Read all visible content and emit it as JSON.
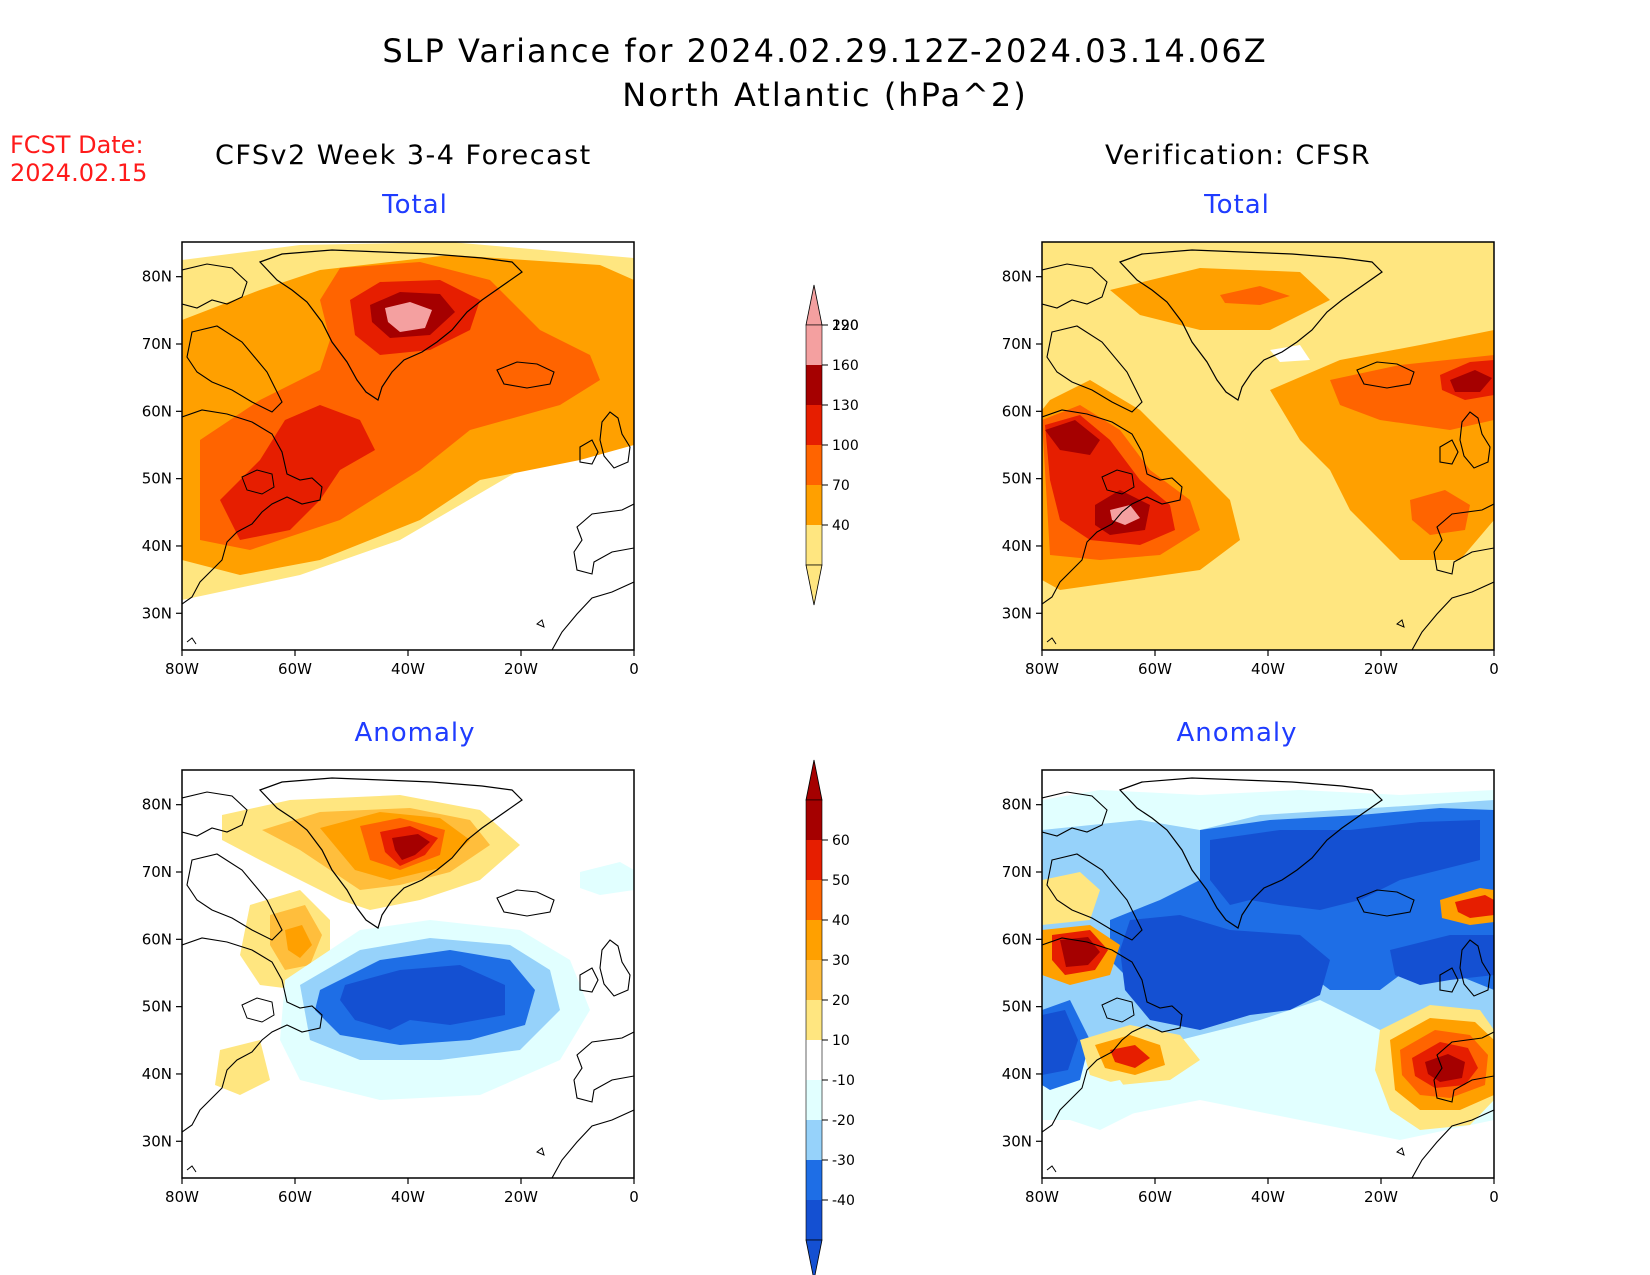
{
  "title_line1": "SLP Variance for 2024.02.29.12Z-2024.03.14.06Z",
  "title_line2": "North Atlantic (hPa^2)",
  "fcst_label": "FCST Date:",
  "fcst_date": "2024.02.15",
  "left_header": "CFSv2 Week 3-4 Forecast",
  "right_header": "Verification: CFSR",
  "panel_titles": {
    "top_left": "Total",
    "top_right": "Total",
    "bottom_left": "Anomaly",
    "bottom_right": "Anomaly"
  },
  "lat_ticks": [
    "80N",
    "70N",
    "60N",
    "50N",
    "40N",
    "30N"
  ],
  "lon_ticks": [
    "80W",
    "60W",
    "40W",
    "20W",
    "0"
  ],
  "total_colorbar": {
    "levels": [
      "40",
      "70",
      "100",
      "130",
      "160",
      "190",
      "220"
    ],
    "colors": [
      "#ffe680",
      "#ffa000",
      "#ff6400",
      "#e61e00",
      "#a50000",
      "#f4a0a0",
      "#ffe0e0"
    ]
  },
  "anomaly_colorbar": {
    "levels": [
      "-40",
      "-30",
      "-20",
      "-10",
      "10",
      "20",
      "30",
      "40",
      "50",
      "60"
    ],
    "colors": [
      "#1450d2",
      "#1e6ee6",
      "#96d2fa",
      "#e1ffff",
      "#ffffff",
      "#ffe680",
      "#ffbe3c",
      "#ffa000",
      "#ff6400",
      "#e61e00",
      "#a50000"
    ]
  }
}
